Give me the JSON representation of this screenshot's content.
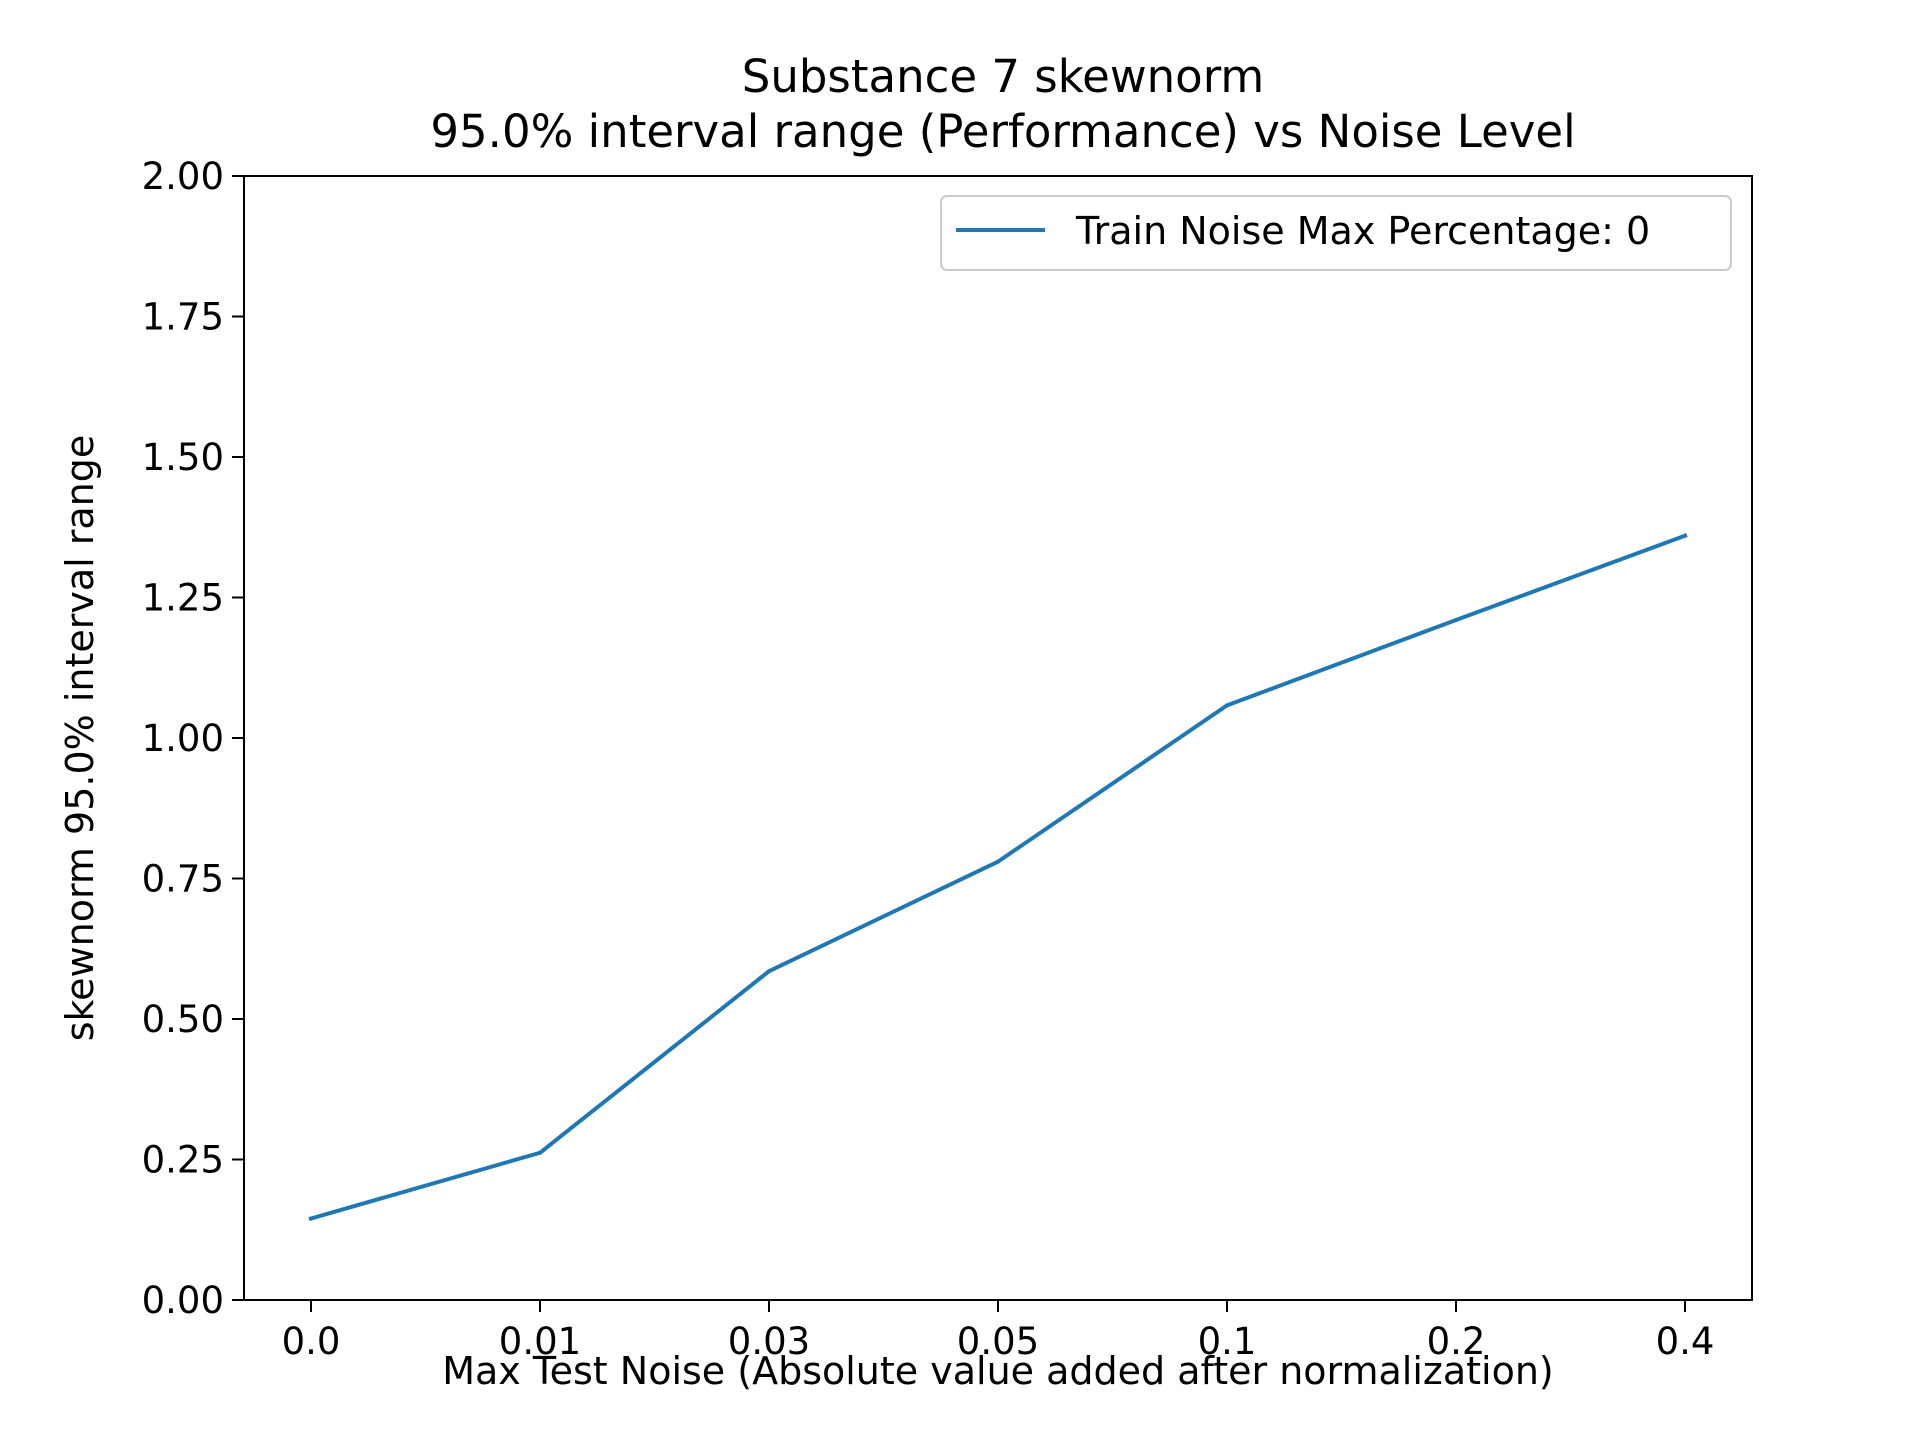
{
  "chart_data": {
    "type": "line",
    "title_lines": [
      "Substance 7 skewnorm",
      "95.0% interval range (Performance) vs Noise Level"
    ],
    "xlabel": "Max Test Noise (Absolute value added after normalization)",
    "ylabel": "skewnorm 95.0% interval range",
    "categories": [
      "0.0",
      "0.01",
      "0.03",
      "0.05",
      "0.1",
      "0.2",
      "0.4"
    ],
    "yticks": [
      "0.00",
      "0.25",
      "0.50",
      "0.75",
      "1.00",
      "1.25",
      "1.50",
      "1.75",
      "2.00"
    ],
    "ylim": [
      0,
      2
    ],
    "grid": false,
    "legend_position": "top-right",
    "series": [
      {
        "name": "Train Noise Max Percentage: 0",
        "color": "#1f77b4",
        "values": [
          0.145,
          0.262,
          0.585,
          0.78,
          1.058,
          1.21,
          1.36
        ]
      }
    ]
  }
}
